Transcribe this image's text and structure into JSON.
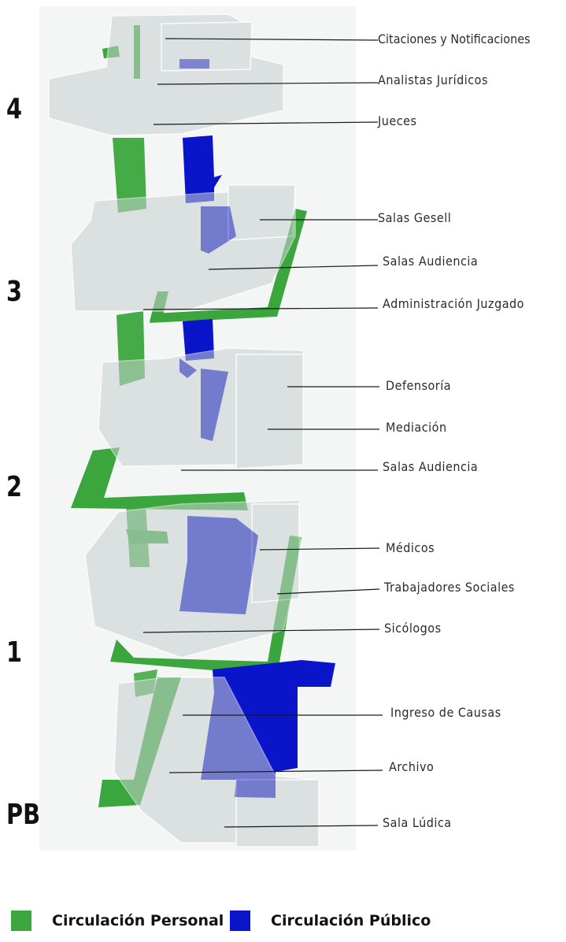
{
  "colors": {
    "personal": "#3aa63d",
    "publico": "#0a14c8",
    "volume": "#d4dada"
  },
  "floors": [
    "4",
    "3",
    "2",
    "1",
    "PB"
  ],
  "labels": [
    "Citaciones y Notificaciones",
    "Analistas Jurídicos",
    "Jueces",
    "Salas Gesell",
    "Salas Audiencia",
    "Administración Juzgado",
    "Defensoría",
    "Mediación",
    "Salas Audiencia",
    "Médicos",
    "Trabajadores Sociales",
    "Sicólogos",
    "Ingreso de Causas",
    "Archivo",
    "Sala Lúdica"
  ],
  "legend": {
    "personal": "Circulación Personal",
    "publico": "Circulación Público"
  }
}
